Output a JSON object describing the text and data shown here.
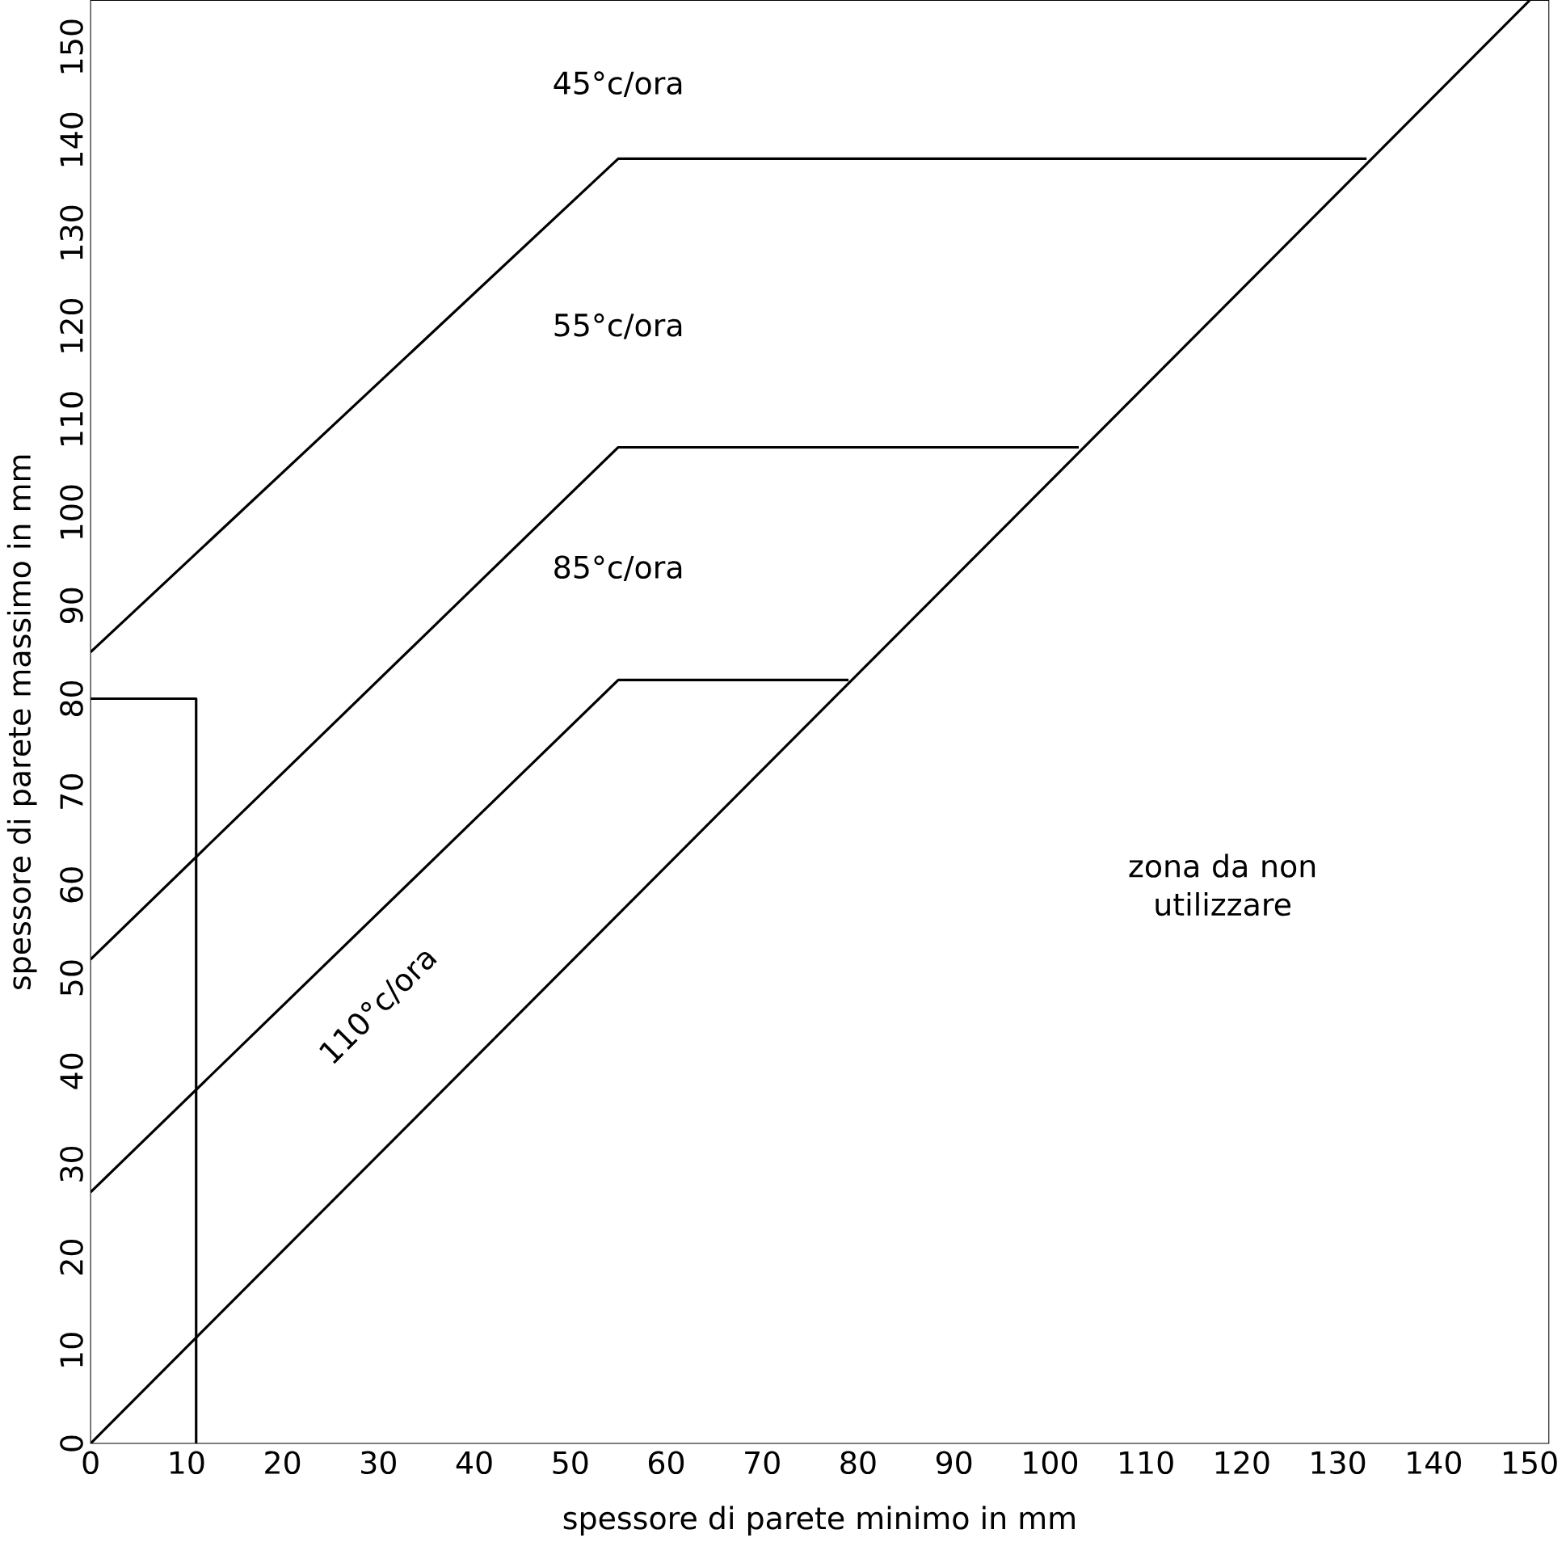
{
  "chart_data": {
    "type": "line",
    "xlabel": "spessore di parete minimo in mm",
    "ylabel": "spessore di parete massimo in mm",
    "xlim": [
      0,
      152
    ],
    "ylim": [
      0,
      155
    ],
    "xticks": [
      0,
      10,
      20,
      30,
      40,
      50,
      60,
      70,
      80,
      90,
      100,
      110,
      120,
      130,
      140,
      150
    ],
    "yticks": [
      0,
      10,
      20,
      30,
      40,
      50,
      60,
      70,
      80,
      90,
      100,
      110,
      120,
      130,
      140,
      150
    ],
    "grid": false,
    "marker": "none",
    "line_style": "solid",
    "series": [
      {
        "color": "#000000",
        "x": [
          0,
          150
        ],
        "values": [
          0,
          155
        ]
      },
      {
        "color": "#000000",
        "x": [
          0,
          55,
          79
        ],
        "values": [
          27,
          82,
          82
        ]
      },
      {
        "color": "#000000",
        "x": [
          0,
          55,
          103
        ],
        "values": [
          52,
          107,
          107
        ]
      },
      {
        "color": "#000000",
        "x": [
          0,
          55,
          133
        ],
        "values": [
          85,
          138,
          138
        ]
      },
      {
        "color": "#000000",
        "x": [
          0,
          11,
          11
        ],
        "values": [
          80,
          80,
          0
        ]
      }
    ],
    "annotations": [
      "45°c/ora",
      "55°c/ora",
      "85°c/ora",
      "110°c/ora",
      "zona da non utilizzare"
    ]
  }
}
